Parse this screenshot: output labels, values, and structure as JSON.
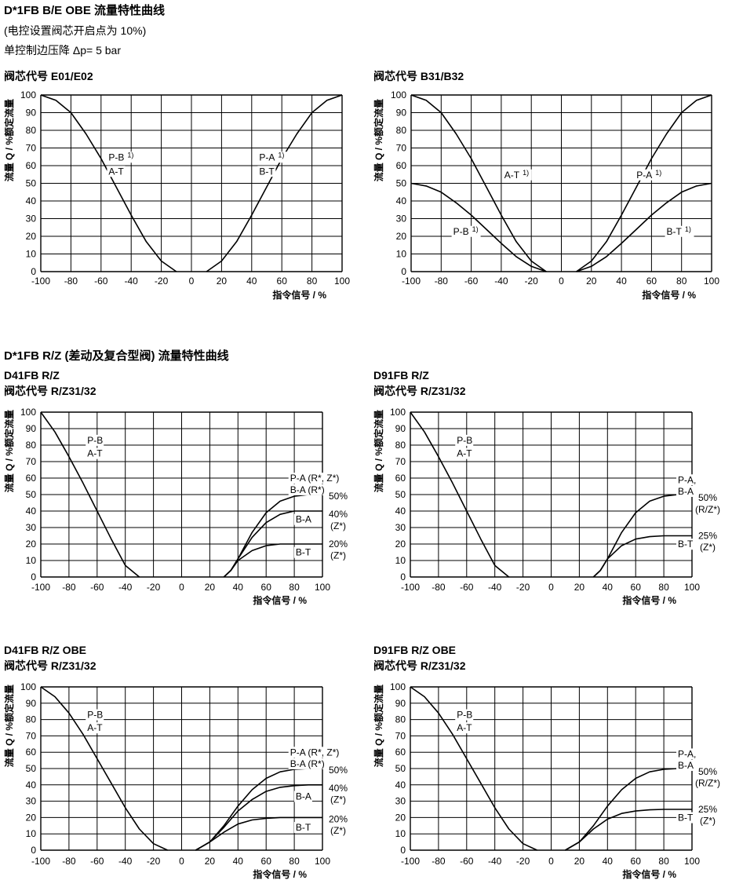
{
  "section1": {
    "title": "D*1FB B/E OBE 流量特性曲线",
    "note": "(电控设置阀芯开启点为 10%)",
    "pressure": "单控制边压降  Δp= 5 bar"
  },
  "section2": {
    "title": "D*1FB R/Z (差动及复合型阀)  流量特性曲线"
  },
  "chart_data": [
    {
      "type": "line",
      "header": "阀芯代号 E01/E02",
      "ylabel": "流量  Q / %额定流量",
      "xlabel": "指令信号  / %",
      "xlim": [
        -100,
        100
      ],
      "ylim": [
        0,
        100
      ],
      "xticks": [
        "-100",
        "-80",
        "-60",
        "-40",
        "-20",
        "0",
        "20",
        "40",
        "60",
        "80",
        "100"
      ],
      "yticks": [
        "0",
        "10",
        "20",
        "30",
        "40",
        "50",
        "60",
        "70",
        "80",
        "90",
        "100"
      ],
      "series": [
        {
          "name": "P-B / A-T",
          "x": [
            -100,
            -90,
            -80,
            -70,
            -60,
            -50,
            -40,
            -30,
            -20,
            -10
          ],
          "y": [
            100,
            97,
            90,
            78,
            64,
            48,
            32,
            17,
            6,
            0
          ]
        },
        {
          "name": "P-A / B-T",
          "x": [
            10,
            20,
            30,
            40,
            50,
            60,
            70,
            80,
            90,
            100
          ],
          "y": [
            0,
            6,
            17,
            32,
            48,
            64,
            78,
            90,
            97,
            100
          ]
        }
      ],
      "labels": [
        {
          "text": "P-B",
          "sup": "1)",
          "x": -55,
          "y": 63
        },
        {
          "text": "A-T",
          "x": -55,
          "y": 55
        },
        {
          "text": "P-A",
          "sup": "1)",
          "x": 45,
          "y": 63
        },
        {
          "text": "B-T",
          "x": 45,
          "y": 55
        }
      ]
    },
    {
      "type": "line",
      "header": "阀芯代号 B31/B32",
      "ylabel": "流量  Q / %额定流量",
      "xlabel": "指令信号  / %",
      "xlim": [
        -100,
        100
      ],
      "ylim": [
        0,
        100
      ],
      "xticks": [
        "-100",
        "-80",
        "-60",
        "-40",
        "-20",
        "0",
        "20",
        "40",
        "60",
        "80",
        "100"
      ],
      "yticks": [
        "0",
        "10",
        "20",
        "30",
        "40",
        "50",
        "60",
        "70",
        "80",
        "90",
        "100"
      ],
      "series": [
        {
          "name": "A-T",
          "x": [
            -100,
            -90,
            -80,
            -70,
            -60,
            -50,
            -40,
            -30,
            -20,
            -10
          ],
          "y": [
            100,
            97,
            90,
            78,
            64,
            48,
            32,
            17,
            6,
            0
          ]
        },
        {
          "name": "P-A",
          "x": [
            10,
            20,
            30,
            40,
            50,
            60,
            70,
            80,
            90,
            100
          ],
          "y": [
            0,
            6,
            17,
            32,
            48,
            64,
            78,
            90,
            97,
            100
          ]
        },
        {
          "name": "P-B",
          "x": [
            -100,
            -90,
            -80,
            -70,
            -60,
            -50,
            -40,
            -30,
            -20,
            -10
          ],
          "y": [
            50,
            48.5,
            45,
            39,
            32,
            24,
            16,
            8.5,
            3,
            0
          ]
        },
        {
          "name": "B-T",
          "x": [
            10,
            20,
            30,
            40,
            50,
            60,
            70,
            80,
            90,
            100
          ],
          "y": [
            0,
            3,
            8.5,
            16,
            24,
            32,
            39,
            45,
            48.5,
            50
          ]
        }
      ],
      "labels": [
        {
          "text": "A-T",
          "sup": "1)",
          "x": -38,
          "y": 53
        },
        {
          "text": "P-A",
          "sup": "1)",
          "x": 50,
          "y": 53
        },
        {
          "text": "P-B",
          "sup": "1)",
          "x": -72,
          "y": 21
        },
        {
          "text": "B-T",
          "sup": "1)",
          "x": 70,
          "y": 21
        }
      ]
    },
    {
      "type": "line",
      "title": "D41FB R/Z",
      "header": "阀芯代号 R/Z31/32",
      "ylabel": "流量  Q / %额定流量",
      "xlabel": "指令信号  / %",
      "xlim": [
        -100,
        100
      ],
      "ylim": [
        0,
        100
      ],
      "xticks": [
        "-100",
        "-80",
        "-60",
        "-40",
        "-20",
        "0",
        "20",
        "40",
        "60",
        "80",
        "100"
      ],
      "yticks": [
        "0",
        "10",
        "20",
        "30",
        "40",
        "50",
        "60",
        "70",
        "80",
        "90",
        "100"
      ],
      "series": [
        {
          "name": "P-B / A-T",
          "x": [
            -100,
            -90,
            -80,
            -70,
            -60,
            -50,
            -40,
            -30
          ],
          "y": [
            100,
            88,
            73,
            57,
            40,
            23,
            7,
            0
          ]
        },
        {
          "name": "P-A (R*, Z*) 50%",
          "x": [
            30,
            35,
            40,
            50,
            60,
            70,
            80,
            90,
            100
          ],
          "y": [
            0,
            4,
            11,
            27,
            39,
            46,
            49,
            50,
            50
          ]
        },
        {
          "name": "B-A (Z*) 40%",
          "x": [
            30,
            35,
            40,
            50,
            60,
            70,
            80,
            90,
            100
          ],
          "y": [
            0,
            4,
            11,
            24,
            33,
            38,
            40,
            40,
            40
          ]
        },
        {
          "name": "B-T (Z*) 20%",
          "x": [
            30,
            35,
            40,
            50,
            60,
            70,
            80,
            90,
            100
          ],
          "y": [
            0,
            4,
            10,
            16,
            19,
            20,
            20,
            20,
            20
          ]
        }
      ],
      "labels": [
        {
          "text": "P-B",
          "x": -67,
          "y": 81
        },
        {
          "text": "A-T",
          "x": -67,
          "y": 73
        },
        {
          "text": "P-A (R*, Z*)",
          "x": 77,
          "y": 58
        },
        {
          "text": "B-A (R*)",
          "x": 77,
          "y": 51
        },
        {
          "text": "B-A",
          "x": 81,
          "y": 33
        },
        {
          "text": "B-T",
          "x": 81,
          "y": 13
        }
      ],
      "side_labels": [
        {
          "text": "50%",
          "y": 49
        },
        {
          "text": "40%",
          "y": 38
        },
        {
          "text": "(Z*)",
          "y": 31
        },
        {
          "text": "20%",
          "y": 20
        },
        {
          "text": "(Z*)",
          "y": 13
        }
      ]
    },
    {
      "type": "line",
      "title": "D91FB R/Z",
      "header": "阀芯代号 R/Z31/32",
      "ylabel": "流量  Q / %额定流量",
      "xlabel": "指令信号  / %",
      "xlim": [
        -100,
        100
      ],
      "ylim": [
        0,
        100
      ],
      "xticks": [
        "-100",
        "-80",
        "-60",
        "-40",
        "-20",
        "0",
        "20",
        "40",
        "60",
        "80",
        "100"
      ],
      "yticks": [
        "0",
        "10",
        "20",
        "30",
        "40",
        "50",
        "60",
        "70",
        "80",
        "90",
        "100"
      ],
      "series": [
        {
          "name": "P-B / A-T",
          "x": [
            -100,
            -90,
            -80,
            -70,
            -60,
            -50,
            -40,
            -30
          ],
          "y": [
            100,
            88,
            73,
            57,
            40,
            23,
            7,
            0
          ]
        },
        {
          "name": "P-A, B-A 50% (R/Z*)",
          "x": [
            30,
            35,
            40,
            50,
            60,
            70,
            80,
            90,
            100
          ],
          "y": [
            0,
            4,
            11,
            27,
            39,
            46,
            49,
            50,
            50
          ]
        },
        {
          "name": "B-T 25% (Z*)",
          "x": [
            30,
            35,
            40,
            50,
            60,
            70,
            80,
            90,
            100
          ],
          "y": [
            0,
            4,
            11,
            19,
            23,
            24.5,
            25,
            25,
            25
          ]
        }
      ],
      "labels": [
        {
          "text": "P-B",
          "x": -67,
          "y": 81
        },
        {
          "text": "A-T",
          "x": -67,
          "y": 73
        },
        {
          "text": "P-A,",
          "x": 90,
          "y": 57
        },
        {
          "text": "B-A",
          "x": 90,
          "y": 50
        },
        {
          "text": "B-T",
          "x": 90,
          "y": 18
        }
      ],
      "side_labels": [
        {
          "text": "50%",
          "y": 48
        },
        {
          "text": "(R/Z*)",
          "y": 41
        },
        {
          "text": "25%",
          "y": 25
        },
        {
          "text": "(Z*)",
          "y": 18
        }
      ]
    },
    {
      "type": "line",
      "title": "D41FB R/Z OBE",
      "header": "阀芯代号 R/Z31/32",
      "ylabel": "流量  Q / %额定流量",
      "xlabel": "指令信号  / %",
      "xlim": [
        -100,
        100
      ],
      "ylim": [
        0,
        100
      ],
      "xticks": [
        "-100",
        "-80",
        "-60",
        "-40",
        "-20",
        "0",
        "20",
        "40",
        "60",
        "80",
        "100"
      ],
      "yticks": [
        "0",
        "10",
        "20",
        "30",
        "40",
        "50",
        "60",
        "70",
        "80",
        "90",
        "100"
      ],
      "series": [
        {
          "name": "P-B / A-T",
          "x": [
            -100,
            -90,
            -80,
            -70,
            -60,
            -50,
            -40,
            -30,
            -20,
            -10
          ],
          "y": [
            100,
            94,
            84,
            71,
            56,
            41,
            26,
            13,
            4,
            0
          ]
        },
        {
          "name": "P-A (R*, Z*) 50%",
          "x": [
            10,
            20,
            30,
            40,
            50,
            60,
            70,
            80,
            90,
            100
          ],
          "y": [
            0,
            5,
            15,
            27,
            37,
            44,
            48,
            49.5,
            50,
            50
          ]
        },
        {
          "name": "B-A (Z*) 40%",
          "x": [
            10,
            20,
            30,
            40,
            50,
            60,
            70,
            80,
            90,
            100
          ],
          "y": [
            0,
            5,
            14,
            24,
            31,
            36,
            38.5,
            39.5,
            40,
            40
          ]
        },
        {
          "name": "B-T (Z*) 20%",
          "x": [
            10,
            20,
            30,
            40,
            50,
            60,
            70,
            80,
            90,
            100
          ],
          "y": [
            0,
            5,
            11,
            16,
            18.5,
            19.5,
            20,
            20,
            20,
            20
          ]
        }
      ],
      "labels": [
        {
          "text": "P-B",
          "x": -67,
          "y": 81
        },
        {
          "text": "A-T",
          "x": -67,
          "y": 73
        },
        {
          "text": "P-A (R*, Z*)",
          "x": 77,
          "y": 58
        },
        {
          "text": "B-A (R*)",
          "x": 77,
          "y": 51
        },
        {
          "text": "B-A",
          "x": 81,
          "y": 31
        },
        {
          "text": "B-T",
          "x": 81,
          "y": 12
        }
      ],
      "side_labels": [
        {
          "text": "50%",
          "y": 49
        },
        {
          "text": "40%",
          "y": 38
        },
        {
          "text": "(Z*)",
          "y": 31
        },
        {
          "text": "20%",
          "y": 19
        },
        {
          "text": "(Z*)",
          "y": 12
        }
      ]
    },
    {
      "type": "line",
      "title": "D91FB R/Z OBE",
      "header": "阀芯代号 R/Z31/32",
      "ylabel": "流量  Q / %额定流量",
      "xlabel": "指令信号  / %",
      "xlim": [
        -100,
        100
      ],
      "ylim": [
        0,
        100
      ],
      "xticks": [
        "-100",
        "-80",
        "-60",
        "-40",
        "-20",
        "0",
        "20",
        "40",
        "60",
        "80",
        "100"
      ],
      "yticks": [
        "0",
        "10",
        "20",
        "30",
        "40",
        "50",
        "60",
        "70",
        "80",
        "90",
        "100"
      ],
      "series": [
        {
          "name": "P-B / A-T",
          "x": [
            -100,
            -90,
            -80,
            -70,
            -60,
            -50,
            -40,
            -30,
            -20,
            -10
          ],
          "y": [
            100,
            94,
            84,
            71,
            56,
            41,
            26,
            13,
            4,
            0
          ]
        },
        {
          "name": "P-A, B-A 50% (R/Z*)",
          "x": [
            10,
            20,
            30,
            40,
            50,
            60,
            70,
            80,
            90,
            100
          ],
          "y": [
            0,
            5,
            15,
            27,
            37,
            44,
            48,
            49.5,
            50,
            50
          ]
        },
        {
          "name": "B-T 25% (Z*)",
          "x": [
            10,
            20,
            30,
            40,
            50,
            60,
            70,
            80,
            90,
            100
          ],
          "y": [
            0,
            5,
            13,
            19,
            22.5,
            24,
            24.7,
            25,
            25,
            25
          ]
        }
      ],
      "labels": [
        {
          "text": "P-B",
          "x": -67,
          "y": 81
        },
        {
          "text": "A-T",
          "x": -67,
          "y": 73
        },
        {
          "text": "P-A,",
          "x": 90,
          "y": 57
        },
        {
          "text": "B-A",
          "x": 90,
          "y": 50
        },
        {
          "text": "B-T",
          "x": 90,
          "y": 18
        }
      ],
      "side_labels": [
        {
          "text": "50%",
          "y": 48
        },
        {
          "text": "(R/Z*)",
          "y": 41
        },
        {
          "text": "25%",
          "y": 25
        },
        {
          "text": "(Z*)",
          "y": 18
        }
      ]
    }
  ]
}
